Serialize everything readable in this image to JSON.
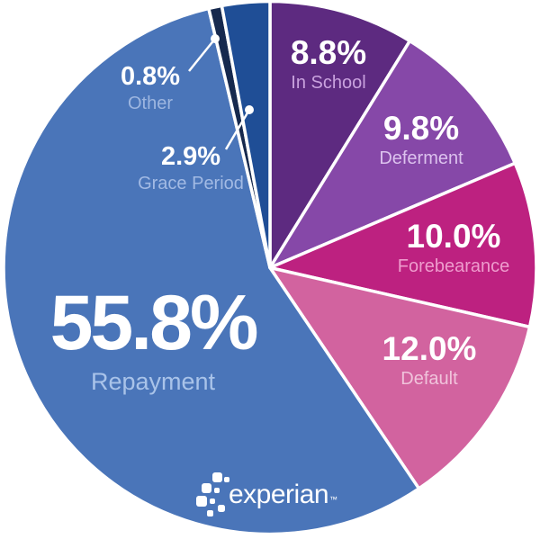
{
  "chart_data": {
    "type": "pie",
    "title": "",
    "start_angle_deg": 0,
    "direction": "clockwise",
    "slices": [
      {
        "label": "In School",
        "value": 8.8,
        "pct_label": "8.8%",
        "color": "#5d2a80",
        "label_color": "#c9a2de"
      },
      {
        "label": "Deferment",
        "value": 9.8,
        "pct_label": "9.8%",
        "color": "#8648a8",
        "label_color": "#dcc2ee"
      },
      {
        "label": "Forebearance",
        "value": 10.0,
        "pct_label": "10.0%",
        "color": "#bd2180",
        "label_color": "#ee9ccd"
      },
      {
        "label": "Default",
        "value": 12.0,
        "pct_label": "12.0%",
        "color": "#d2639f",
        "label_color": "#f0c3db"
      },
      {
        "label": "Repayment",
        "value": 55.8,
        "pct_label": "55.8%",
        "color": "#4a75b9",
        "label_color": "#a9c3e9"
      },
      {
        "label": "Other",
        "value": 0.8,
        "pct_label": "0.8%",
        "color": "#16294e",
        "label_color": "#9db6e0"
      },
      {
        "label": "Grace Period",
        "value": 2.9,
        "pct_label": "2.9%",
        "color": "#1f4e96",
        "label_color": "#a2bae4"
      }
    ],
    "percent_text_color": "#ffffff",
    "separator_color": "#ffffff",
    "legend_position": "in-slice-labels"
  },
  "logo": {
    "text": "experian",
    "trademark": "™"
  }
}
